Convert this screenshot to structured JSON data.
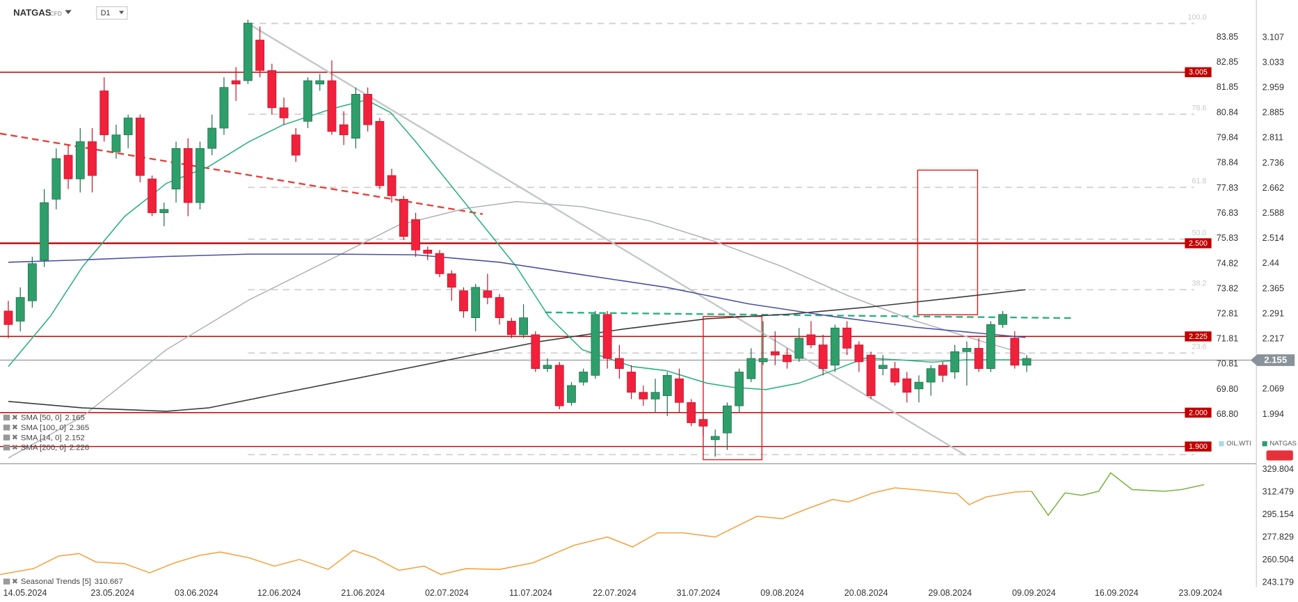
{
  "chart_data": {
    "type": "candlestick",
    "symbol": "NATGAS",
    "instrument_type": "CFD",
    "timeframe": "D1",
    "xlim": [
      -0.694,
      104.17
    ],
    "ylim": [
      1.854,
      3.218
    ],
    "y2lim": [
      66.906,
      85.345
    ],
    "xticks": [
      {
        "value": 1.4,
        "label": "14.05.2024"
      },
      {
        "value": 8.7,
        "label": "23.05.2024"
      },
      {
        "value": 15.7,
        "label": "03.06.2024"
      },
      {
        "value": 22.6,
        "label": "12.06.2024"
      },
      {
        "value": 29.6,
        "label": "21.06.2024"
      },
      {
        "value": 36.6,
        "label": "02.07.2024"
      },
      {
        "value": 43.6,
        "label": "11.07.2024"
      },
      {
        "value": 50.6,
        "label": "22.07.2024"
      },
      {
        "value": 57.6,
        "label": "31.07.2024"
      },
      {
        "value": 64.6,
        "label": "09.08.2024"
      },
      {
        "value": 71.6,
        "label": "20.08.2024"
      },
      {
        "value": 78.6,
        "label": "29.08.2024"
      },
      {
        "value": 85.6,
        "label": "09.09.2024"
      },
      {
        "value": 92.5,
        "label": "16.09.2024"
      },
      {
        "value": 99.5,
        "label": "23.09.2024"
      }
    ],
    "yticks": [
      3.107,
      3.033,
      2.959,
      2.885,
      2.811,
      2.736,
      2.662,
      2.588,
      2.514,
      2.44,
      2.365,
      2.291,
      2.217,
      2.069,
      1.994
    ],
    "y2ticks": [
      83.85,
      82.85,
      81.85,
      80.84,
      79.84,
      78.84,
      77.83,
      76.83,
      75.83,
      74.82,
      73.82,
      72.81,
      71.81,
      70.81,
      {
        "value": 69.8,
        "label": "69.80"
      },
      {
        "value": 68.8,
        "label": "68.80"
      }
    ],
    "up_color": "#2e9e6a",
    "down_color": "#f0213b",
    "open": [
      2.3,
      2.27,
      2.33,
      2.45,
      2.63,
      2.76,
      2.69,
      2.8,
      2.95,
      2.77,
      2.82,
      2.87,
      2.69,
      2.59,
      2.66,
      2.78,
      2.62,
      2.78,
      2.84,
      2.98,
      2.98,
      3.1,
      3.01,
      2.9,
      2.82,
      2.86,
      2.97,
      2.98,
      2.85,
      2.81,
      2.94,
      2.86,
      2.7,
      2.63,
      2.57,
      2.48,
      2.47,
      2.41,
      2.36,
      2.28,
      2.36,
      2.34,
      2.27,
      2.23,
      2.23,
      2.13,
      2.14,
      2.03,
      2.09,
      2.11,
      2.29,
      2.16,
      2.12,
      2.06,
      2.04,
      2.05,
      2.1,
      2.03,
      1.98,
      1.92,
      1.94,
      2.02,
      2.1,
      2.15,
      2.18,
      2.17,
      2.16,
      2.23,
      2.2,
      2.14,
      2.25,
      2.2,
      2.17,
      2.13,
      2.13,
      2.1,
      2.07,
      2.09,
      2.14,
      2.12,
      2.18,
      2.19,
      2.13,
      2.26,
      2.22,
      2.14
    ],
    "high": [
      2.33,
      2.37,
      2.46,
      2.66,
      2.78,
      2.79,
      2.84,
      2.84,
      2.99,
      2.85,
      2.88,
      2.88,
      2.7,
      2.62,
      2.8,
      2.81,
      2.8,
      2.88,
      2.99,
      3.02,
      3.16,
      3.14,
      3.03,
      2.93,
      2.84,
      2.99,
      3.0,
      3.04,
      2.89,
      2.96,
      2.96,
      2.87,
      2.72,
      2.64,
      2.59,
      2.49,
      2.48,
      2.42,
      2.37,
      2.38,
      2.41,
      2.35,
      2.28,
      2.32,
      2.24,
      2.16,
      2.15,
      2.09,
      2.13,
      2.3,
      2.3,
      2.2,
      2.14,
      2.08,
      2.1,
      2.12,
      2.13,
      2.04,
      2.0,
      1.95,
      2.03,
      2.13,
      2.19,
      2.27,
      2.24,
      2.19,
      2.25,
      2.27,
      2.23,
      2.26,
      2.27,
      2.21,
      2.18,
      2.17,
      2.15,
      2.12,
      2.11,
      2.14,
      2.15,
      2.2,
      2.21,
      2.22,
      2.27,
      2.3,
      2.24,
      2.17
    ],
    "low": [
      2.22,
      2.24,
      2.31,
      2.43,
      2.6,
      2.66,
      2.65,
      2.65,
      2.8,
      2.75,
      2.78,
      2.68,
      2.58,
      2.55,
      2.62,
      2.58,
      2.6,
      2.76,
      2.82,
      2.92,
      2.97,
      2.99,
      2.88,
      2.85,
      2.74,
      2.84,
      2.95,
      2.82,
      2.79,
      2.78,
      2.83,
      2.66,
      2.62,
      2.51,
      2.46,
      2.45,
      2.4,
      2.33,
      2.28,
      2.24,
      2.32,
      2.26,
      2.22,
      2.22,
      2.12,
      2.12,
      2.01,
      2.02,
      2.08,
      2.1,
      2.13,
      2.1,
      2.04,
      2.02,
      2.0,
      1.99,
      2.0,
      1.96,
      1.93,
      1.87,
      1.89,
      2.0,
      2.09,
      2.14,
      2.14,
      2.13,
      2.15,
      2.19,
      2.11,
      2.12,
      2.17,
      2.12,
      2.04,
      2.11,
      2.08,
      2.03,
      2.03,
      2.05,
      2.09,
      2.1,
      2.08,
      2.12,
      2.12,
      2.25,
      2.13,
      2.12
    ],
    "close": [
      2.26,
      2.34,
      2.44,
      2.62,
      2.75,
      2.69,
      2.8,
      2.7,
      2.82,
      2.82,
      2.87,
      2.7,
      2.59,
      2.6,
      2.78,
      2.62,
      2.78,
      2.84,
      2.96,
      2.97,
      3.15,
      3.01,
      2.9,
      2.87,
      2.76,
      2.98,
      2.98,
      2.83,
      2.82,
      2.94,
      2.85,
      2.67,
      2.64,
      2.52,
      2.48,
      2.47,
      2.41,
      2.37,
      2.3,
      2.37,
      2.34,
      2.28,
      2.23,
      2.28,
      2.13,
      2.14,
      2.02,
      2.08,
      2.12,
      2.29,
      2.16,
      2.13,
      2.06,
      2.04,
      2.06,
      2.11,
      2.03,
      1.97,
      1.96,
      1.93,
      2.02,
      2.12,
      2.16,
      2.16,
      2.17,
      2.15,
      2.22,
      2.2,
      2.13,
      2.25,
      2.19,
      2.15,
      2.05,
      2.14,
      2.09,
      2.06,
      2.09,
      2.13,
      2.11,
      2.18,
      2.19,
      2.13,
      2.26,
      2.29,
      2.14,
      2.16
    ],
    "series": [
      {
        "name": "SMA [50, 0]",
        "legend_value": 2.165,
        "color": "#b0b4b8",
        "x": [
          0,
          6.2,
          13.2,
          20.1,
          27.1,
          32.6,
          38.2,
          42.4,
          47.9,
          53.5,
          59,
          64.6,
          70.1,
          75.7,
          81.3,
          84.9
        ],
        "values": [
          1.866,
          1.989,
          2.186,
          2.333,
          2.456,
          2.554,
          2.603,
          2.623,
          2.608,
          2.566,
          2.505,
          2.431,
          2.345,
          2.271,
          2.21,
          2.173
        ]
      },
      {
        "name": "SMA [100, 0]",
        "legend_value": 2.365,
        "color": "#3a3a3a",
        "x": [
          0,
          6.2,
          13.2,
          16.7,
          23.6,
          30.6,
          37.5,
          44.4,
          51.4,
          58.3,
          65.3,
          72.2,
          79.2,
          84.9
        ],
        "values": [
          2.033,
          2.014,
          2.004,
          2.014,
          2.063,
          2.112,
          2.161,
          2.21,
          2.247,
          2.277,
          2.291,
          2.313,
          2.34,
          2.363
        ]
      },
      {
        "name": "SMA [14, 0]",
        "legend_value": 2.152,
        "color": "#2bb07f",
        "x": [
          0,
          3.5,
          6.2,
          9.7,
          13.2,
          16.7,
          20.1,
          22.9,
          27.1,
          29.9,
          31.9,
          34,
          36.8,
          39.6,
          42.4,
          45.1,
          47.9,
          52.1,
          54.9,
          58.3,
          60.4,
          63.2,
          66,
          68.8,
          71.5,
          74.3,
          77.1,
          79.9,
          84.9
        ],
        "values": [
          2.136,
          2.284,
          2.431,
          2.579,
          2.677,
          2.726,
          2.8,
          2.849,
          2.898,
          2.923,
          2.886,
          2.8,
          2.677,
          2.554,
          2.431,
          2.284,
          2.186,
          2.136,
          2.124,
          2.087,
          2.075,
          2.068,
          2.087,
          2.124,
          2.161,
          2.156,
          2.149,
          2.156,
          2.156
        ]
      },
      {
        "name": "SMA [200, 0]",
        "legend_value": 2.226,
        "color": "#4a4fa0",
        "x": [
          0,
          6.2,
          13.2,
          20.1,
          27.1,
          34,
          41,
          47.9,
          54.9,
          61.8,
          68.8,
          75.7,
          84.9
        ],
        "values": [
          2.444,
          2.451,
          2.461,
          2.468,
          2.468,
          2.466,
          2.444,
          2.407,
          2.37,
          2.321,
          2.284,
          2.252,
          2.222
        ]
      }
    ],
    "levels": [
      {
        "value": 3.005,
        "color": "#c00000"
      },
      {
        "value": 2.5,
        "label": "2.500",
        "color": "#c00000",
        "bold": true
      },
      {
        "value": 2.225,
        "color": "#c00000"
      },
      {
        "value": 2.0,
        "label": "2.000",
        "color": "#c00000"
      },
      {
        "value": 1.9,
        "label": "1.900",
        "color": "#c00000"
      }
    ],
    "current_price": 2.155,
    "fib_levels": [
      {
        "price": 3.149,
        "label": "100.0"
      },
      {
        "price": 2.881,
        "label": "78.6"
      },
      {
        "price": 2.665,
        "label": "61.8"
      },
      {
        "price": 2.512,
        "label": "50.0"
      },
      {
        "price": 2.363,
        "label": "38.2"
      },
      {
        "price": 2.176,
        "label": "23.6"
      },
      {
        "price": 1.876
      }
    ],
    "trend_lines": [
      {
        "x": [
          -0.694,
          39.6
        ],
        "y": [
          2.824,
          2.586
        ],
        "color": "#e8403a",
        "dash": true
      },
      {
        "x": [
          20,
          79.9
        ],
        "y": [
          3.149,
          1.874
        ],
        "color": "#c4c7ca",
        "dash": false
      },
      {
        "x": [
          44.8,
          88.9
        ],
        "y": [
          2.296,
          2.279
        ],
        "color": "#2bb07f",
        "dash": true
      }
    ],
    "boxes": [
      {
        "x": [
          58,
          62.9
        ],
        "y": [
          1.861,
          2.284
        ],
        "color": "#e02020"
      },
      {
        "x": [
          75.9,
          80.9
        ],
        "y": [
          2.289,
          2.716
        ],
        "color": "#e02020"
      }
    ],
    "legend_symbols": [
      "OIL.WTI",
      "NATGAS"
    ],
    "seasonal": {
      "name": "Seasonal Trends [5]",
      "legend_value": 310.667,
      "ylim": [
        238.07,
        333.63
      ],
      "yticks": [
        329.804,
        312.479,
        295.154,
        277.829,
        260.504,
        243.179
      ],
      "series": [
        {
          "color": "#f4a340",
          "x": [
            -0.694,
            2.1,
            4.2,
            5.9,
            7.3,
            9.7,
            11.8,
            13.9,
            16,
            17.7,
            20.1,
            22.2,
            24.3,
            26.7,
            28.8,
            30.6,
            32.6,
            34.7,
            36.1,
            38.2,
            41,
            43.8,
            47.2,
            50,
            52.1,
            54.2,
            56.3,
            59,
            60.4,
            62.5,
            64.6,
            66.7,
            68.8,
            70.1,
            72.2,
            74,
            76.4,
            79.2,
            80.2,
            81.6,
            84,
            85.4
          ],
          "values": [
            249.5,
            254,
            263.6,
            265.5,
            259.1,
            257.8,
            250.8,
            258.5,
            264.2,
            266.7,
            262.3,
            255.9,
            261,
            253.4,
            268,
            262.3,
            252.7,
            255.9,
            249.5,
            254,
            253.4,
            258.5,
            271.8,
            278.2,
            270.6,
            281.4,
            281.4,
            278.2,
            284.6,
            294.1,
            292.2,
            299.9,
            306.9,
            305,
            312,
            315.8,
            313.9,
            311.3,
            303,
            308.8,
            312.6,
            313.2
          ]
        },
        {
          "color": "#7cb342",
          "x": [
            85.4,
            86.8,
            88.2,
            89.6,
            91,
            92,
            93.8,
            96.5,
            97.9,
            99.8
          ],
          "values": [
            313.2,
            294.8,
            312,
            310.1,
            313.2,
            327.3,
            314.5,
            313.2,
            314.5,
            318.3
          ]
        }
      ]
    }
  }
}
